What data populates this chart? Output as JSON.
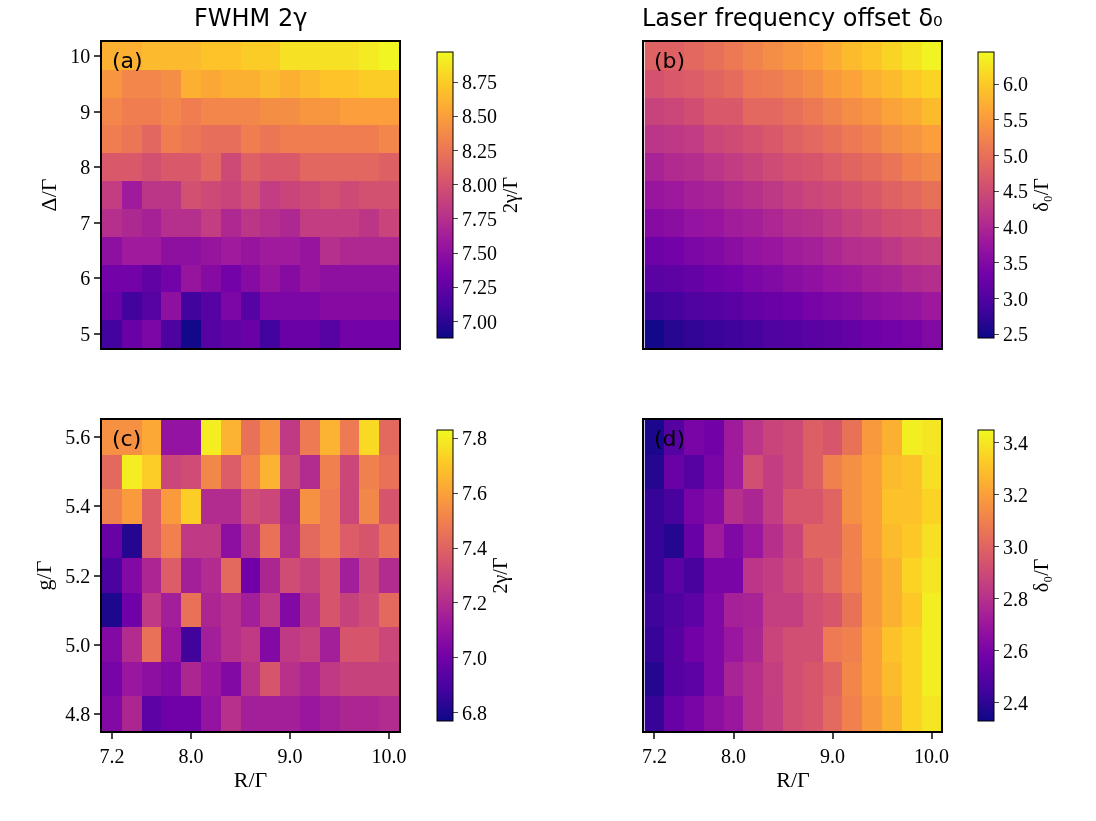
{
  "chart_data": [
    {
      "type": "heatmap",
      "title": "FWHM 2γ",
      "ylabel": "Δ/Γ",
      "clabel": "2γ/Γ",
      "annotations": [
        "(a)"
      ],
      "tick_labels": "y",
      "x": [
        7.2,
        7.4,
        7.6,
        7.8,
        8.0,
        8.2,
        8.4,
        8.6,
        8.8,
        9.0,
        9.2,
        9.4,
        9.6,
        9.8,
        10.0
      ],
      "y": [
        10.0,
        9.5,
        9.0,
        8.5,
        8.0,
        7.5,
        7.0,
        6.5,
        6.0,
        5.5,
        5.0
      ],
      "xlim": [
        7.1,
        10.1
      ],
      "ylim": [
        4.75,
        10.25
      ],
      "yticks": [
        5,
        6,
        7,
        8,
        9,
        10
      ],
      "clim": [
        6.88,
        8.97
      ],
      "cticks": [
        {
          "value": 7.0,
          "label": "7.00"
        },
        {
          "value": 7.25,
          "label": "7.25"
        },
        {
          "value": 7.5,
          "label": "7.50"
        },
        {
          "value": 7.75,
          "label": "7.75"
        },
        {
          "value": 8.0,
          "label": "8.00"
        },
        {
          "value": 8.25,
          "label": "8.25"
        },
        {
          "value": 8.5,
          "label": "8.50"
        },
        {
          "value": 8.75,
          "label": "8.75"
        }
      ],
      "cells": [
        [
          8.6,
          8.6,
          8.65,
          8.65,
          8.65,
          8.7,
          8.7,
          8.75,
          8.75,
          8.85,
          8.85,
          8.85,
          8.85,
          8.9,
          8.95
        ],
        [
          8.45,
          8.35,
          8.35,
          8.4,
          8.6,
          8.55,
          8.6,
          8.6,
          8.65,
          8.6,
          8.65,
          8.7,
          8.7,
          8.75,
          8.75
        ],
        [
          8.35,
          8.3,
          8.3,
          8.35,
          8.3,
          8.35,
          8.35,
          8.35,
          8.4,
          8.4,
          8.45,
          8.45,
          8.5,
          8.5,
          8.5
        ],
        [
          8.3,
          8.25,
          8.15,
          8.3,
          8.25,
          8.2,
          8.2,
          8.3,
          8.25,
          8.3,
          8.3,
          8.3,
          8.3,
          8.3,
          8.35
        ],
        [
          8.05,
          8.05,
          8.0,
          8.05,
          8.05,
          8.15,
          7.95,
          8.1,
          8.05,
          8.05,
          8.15,
          8.15,
          8.15,
          8.15,
          8.1
        ],
        [
          7.85,
          7.6,
          7.8,
          7.8,
          8.0,
          7.95,
          7.9,
          8.0,
          7.85,
          7.9,
          7.95,
          8.0,
          7.95,
          8.0,
          8.0
        ],
        [
          7.75,
          7.7,
          7.65,
          7.75,
          7.75,
          7.85,
          7.7,
          7.8,
          7.75,
          7.7,
          7.85,
          7.85,
          7.85,
          7.8,
          7.9
        ],
        [
          7.5,
          7.6,
          7.6,
          7.5,
          7.5,
          7.55,
          7.6,
          7.55,
          7.6,
          7.6,
          7.55,
          7.75,
          7.7,
          7.7,
          7.7
        ],
        [
          7.35,
          7.35,
          7.25,
          7.35,
          7.55,
          7.45,
          7.35,
          7.45,
          7.55,
          7.45,
          7.55,
          7.5,
          7.5,
          7.5,
          7.5
        ],
        [
          7.3,
          7.1,
          7.2,
          7.5,
          7.1,
          7.2,
          7.4,
          7.2,
          7.4,
          7.4,
          7.4,
          7.45,
          7.45,
          7.45,
          7.45
        ],
        [
          7.1,
          7.3,
          7.4,
          7.15,
          6.9,
          7.2,
          7.25,
          7.3,
          7.1,
          7.3,
          7.3,
          7.2,
          7.35,
          7.35,
          7.35
        ]
      ]
    },
    {
      "type": "heatmap",
      "title": "Laser frequency offset δ₀",
      "clabel": "δ₀/Γ",
      "annotations": [
        "(b)"
      ],
      "tick_labels": false,
      "x": [
        7.2,
        7.4,
        7.6,
        7.8,
        8.0,
        8.2,
        8.4,
        8.6,
        8.8,
        9.0,
        9.2,
        9.4,
        9.6,
        9.8,
        10.0
      ],
      "y": [
        10.0,
        9.5,
        9.0,
        8.5,
        8.0,
        7.5,
        7.0,
        6.5,
        6.0,
        5.5,
        5.0
      ],
      "xlim": [
        7.1,
        10.1
      ],
      "ylim": [
        4.75,
        10.25
      ],
      "clim": [
        2.45,
        6.45
      ],
      "cticks": [
        {
          "value": 2.5,
          "label": "2.5"
        },
        {
          "value": 3.0,
          "label": "3.0"
        },
        {
          "value": 3.5,
          "label": "3.5"
        },
        {
          "value": 4.0,
          "label": "4.0"
        },
        {
          "value": 4.5,
          "label": "4.5"
        },
        {
          "value": 5.0,
          "label": "5.0"
        },
        {
          "value": 5.5,
          "label": "5.5"
        },
        {
          "value": 6.0,
          "label": "6.0"
        }
      ],
      "cells": [
        [
          4.8,
          4.8,
          4.9,
          5.0,
          5.1,
          5.25,
          5.35,
          5.45,
          5.55,
          5.7,
          5.85,
          5.95,
          6.1,
          6.25,
          6.4
        ],
        [
          4.6,
          4.7,
          4.75,
          4.85,
          4.95,
          5.1,
          5.15,
          5.25,
          5.35,
          5.5,
          5.6,
          5.75,
          5.85,
          6.0,
          6.1
        ],
        [
          4.4,
          4.45,
          4.55,
          4.7,
          4.7,
          4.9,
          4.9,
          5.0,
          5.1,
          5.25,
          5.35,
          5.45,
          5.6,
          5.7,
          5.85
        ],
        [
          4.2,
          4.25,
          4.3,
          4.45,
          4.5,
          4.6,
          4.7,
          4.8,
          4.9,
          5.0,
          5.1,
          5.2,
          5.35,
          5.45,
          5.55
        ],
        [
          3.95,
          4.05,
          4.1,
          4.2,
          4.3,
          4.4,
          4.5,
          4.6,
          4.65,
          4.75,
          4.85,
          4.95,
          5.05,
          5.2,
          5.3
        ],
        [
          3.75,
          3.8,
          3.9,
          3.95,
          4.05,
          4.15,
          4.25,
          4.35,
          4.45,
          4.5,
          4.6,
          4.7,
          4.8,
          4.9,
          5.0
        ],
        [
          3.55,
          3.6,
          3.7,
          3.75,
          3.85,
          3.9,
          4.0,
          4.1,
          4.15,
          4.25,
          4.35,
          4.45,
          4.55,
          4.6,
          4.7
        ],
        [
          3.3,
          3.35,
          3.45,
          3.5,
          3.6,
          3.7,
          3.75,
          3.85,
          3.9,
          4.0,
          4.1,
          4.15,
          4.25,
          4.35,
          4.4
        ],
        [
          3.1,
          3.15,
          3.2,
          3.3,
          3.35,
          3.45,
          3.5,
          3.6,
          3.65,
          3.75,
          3.8,
          3.9,
          3.95,
          4.05,
          4.1
        ],
        [
          2.85,
          2.9,
          3.0,
          3.05,
          3.1,
          3.2,
          3.25,
          3.3,
          3.4,
          3.45,
          3.5,
          3.6,
          3.65,
          3.7,
          3.8
        ],
        [
          2.5,
          2.65,
          2.75,
          2.8,
          2.85,
          2.9,
          3.0,
          3.05,
          3.1,
          3.15,
          3.2,
          3.3,
          3.35,
          3.4,
          3.5
        ]
      ]
    },
    {
      "type": "heatmap",
      "xlabel": "R/Γ",
      "ylabel": "g/Γ",
      "clabel": "2γ/Γ",
      "annotations": [
        "(c)"
      ],
      "x": [
        7.2,
        7.4,
        7.6,
        7.8,
        8.0,
        8.2,
        8.4,
        8.6,
        8.8,
        9.0,
        9.2,
        9.4,
        9.6,
        9.8,
        10.0
      ],
      "y": [
        5.6,
        5.5,
        5.4,
        5.3,
        5.2,
        5.1,
        5.0,
        4.9,
        4.8
      ],
      "xlim": [
        7.1,
        10.1
      ],
      "ylim": [
        4.75,
        5.65
      ],
      "xticks": [
        {
          "value": 7.2,
          "label": "7.2"
        },
        {
          "value": 8.0,
          "label": "8.0"
        },
        {
          "value": 9.0,
          "label": "9.0"
        },
        {
          "value": 10.0,
          "label": "10.0"
        }
      ],
      "yticks": [
        4.8,
        {
          "value": 5.0,
          "label": "5.0"
        },
        5.2,
        5.4,
        5.6
      ],
      "clim": [
        6.77,
        7.83
      ],
      "cticks": [
        6.8,
        {
          "value": 7.0,
          "label": "7.0"
        },
        7.2,
        7.4,
        7.6,
        7.8
      ],
      "cells": [
        [
          7.55,
          7.55,
          7.62,
          7.1,
          7.1,
          7.8,
          7.65,
          7.45,
          7.55,
          7.25,
          7.48,
          7.65,
          7.48,
          7.75,
          7.42
        ],
        [
          7.42,
          7.8,
          7.72,
          7.3,
          7.32,
          7.52,
          7.38,
          7.5,
          7.65,
          7.3,
          7.2,
          7.5,
          7.3,
          7.5,
          7.45
        ],
        [
          7.5,
          7.58,
          7.38,
          7.58,
          7.72,
          7.2,
          7.2,
          7.32,
          7.3,
          7.18,
          7.55,
          7.48,
          7.3,
          7.52,
          7.35
        ],
        [
          6.98,
          6.82,
          7.38,
          7.5,
          7.25,
          7.25,
          7.08,
          7.22,
          7.45,
          7.2,
          7.42,
          7.48,
          7.38,
          7.35,
          7.45
        ],
        [
          6.9,
          7.05,
          7.18,
          7.38,
          7.15,
          7.2,
          7.42,
          7.0,
          7.18,
          7.32,
          7.28,
          7.35,
          7.15,
          7.3,
          7.2
        ],
        [
          6.8,
          7.0,
          7.25,
          7.15,
          7.45,
          7.18,
          7.22,
          7.15,
          7.25,
          7.05,
          7.22,
          7.35,
          7.28,
          7.32,
          7.42
        ],
        [
          7.05,
          7.2,
          7.45,
          7.12,
          6.88,
          7.15,
          7.22,
          7.25,
          7.05,
          7.25,
          7.28,
          7.15,
          7.35,
          7.35,
          7.3
        ],
        [
          7.02,
          7.12,
          7.08,
          7.05,
          7.18,
          7.12,
          7.05,
          7.22,
          7.35,
          7.22,
          7.18,
          7.25,
          7.28,
          7.28,
          7.28
        ],
        [
          7.05,
          7.18,
          6.95,
          7.0,
          7.0,
          7.1,
          7.22,
          7.15,
          7.15,
          7.15,
          7.12,
          7.15,
          7.18,
          7.18,
          7.2
        ]
      ]
    },
    {
      "type": "heatmap",
      "xlabel": "R/Γ",
      "clabel": "δ₀/Γ",
      "annotations": [
        "(d)"
      ],
      "tick_labels": "x",
      "x": [
        7.2,
        7.4,
        7.6,
        7.8,
        8.0,
        8.2,
        8.4,
        8.6,
        8.8,
        9.0,
        9.2,
        9.4,
        9.6,
        9.8,
        10.0
      ],
      "y": [
        5.6,
        5.5,
        5.4,
        5.3,
        5.2,
        5.1,
        5.0,
        4.9,
        4.8
      ],
      "xlim": [
        7.1,
        10.1
      ],
      "ylim": [
        4.75,
        5.65
      ],
      "xticks": [
        {
          "value": 7.2,
          "label": "7.2"
        },
        {
          "value": 8.0,
          "label": "8.0"
        },
        {
          "value": 9.0,
          "label": "9.0"
        },
        {
          "value": 10.0,
          "label": "10.0"
        }
      ],
      "clim": [
        2.33,
        3.45
      ],
      "cticks": [
        2.4,
        2.6,
        2.8,
        {
          "value": 3.0,
          "label": "3.0"
        },
        3.2,
        3.4
      ],
      "cells": [
        [
          2.36,
          2.5,
          2.6,
          2.58,
          2.72,
          2.82,
          2.88,
          2.9,
          2.98,
          2.95,
          3.05,
          3.18,
          3.25,
          3.42,
          3.4
        ],
        [
          2.38,
          2.55,
          2.5,
          2.6,
          2.72,
          2.92,
          2.85,
          2.9,
          2.98,
          3.1,
          3.15,
          3.2,
          3.28,
          3.3,
          3.38
        ],
        [
          2.42,
          2.46,
          2.6,
          2.64,
          2.8,
          2.76,
          2.85,
          2.95,
          2.95,
          3.0,
          3.15,
          3.2,
          3.3,
          3.3,
          3.35
        ],
        [
          2.42,
          2.38,
          2.55,
          2.72,
          2.62,
          2.7,
          2.8,
          2.88,
          3.0,
          3.0,
          3.1,
          3.2,
          3.28,
          3.32,
          3.38
        ],
        [
          2.42,
          2.52,
          2.46,
          2.6,
          2.6,
          2.82,
          2.85,
          2.9,
          2.95,
          3.02,
          3.1,
          3.18,
          3.25,
          3.35,
          3.4
        ],
        [
          2.44,
          2.48,
          2.52,
          2.62,
          2.74,
          2.75,
          2.86,
          2.86,
          2.92,
          2.95,
          3.05,
          3.18,
          3.25,
          3.32,
          3.42
        ],
        [
          2.42,
          2.5,
          2.58,
          2.62,
          2.7,
          2.76,
          2.88,
          2.92,
          2.92,
          3.08,
          3.1,
          3.2,
          3.3,
          3.35,
          3.42
        ],
        [
          2.38,
          2.5,
          2.52,
          2.62,
          2.75,
          2.8,
          2.86,
          2.92,
          2.95,
          3.0,
          3.12,
          3.2,
          3.28,
          3.35,
          3.42
        ],
        [
          2.42,
          2.55,
          2.6,
          2.66,
          2.7,
          2.8,
          2.85,
          2.92,
          2.95,
          3.02,
          3.1,
          3.18,
          3.25,
          3.35,
          3.4
        ]
      ]
    }
  ]
}
